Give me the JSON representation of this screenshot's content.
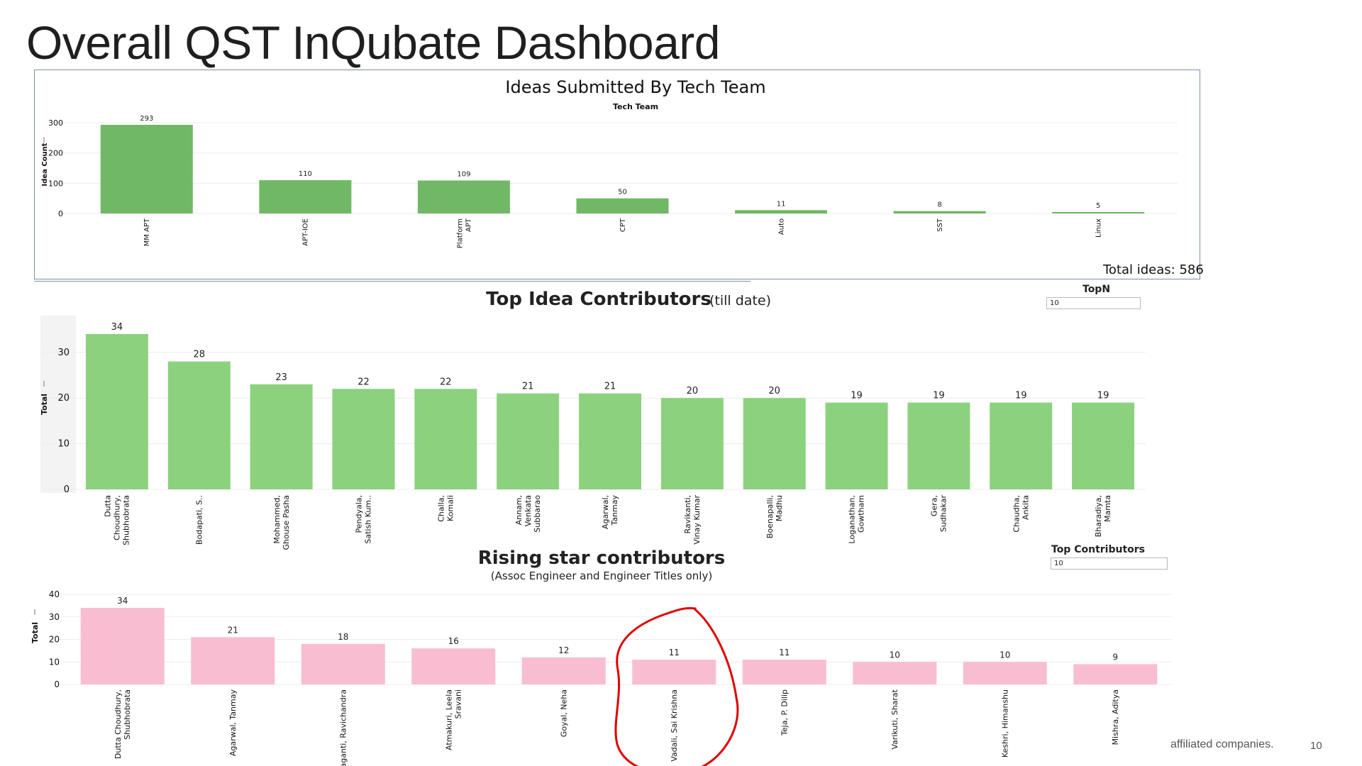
{
  "page": {
    "title": "Overall QST InQubate Dashboard",
    "footer_note": "affiliated companies.",
    "page_number": "10"
  },
  "chart_data": [
    {
      "type": "bar",
      "title": "Ideas Submitted By Tech Team",
      "subtitle": "Tech Team",
      "ylabel": "Idea Count",
      "ylim": [
        0,
        300
      ],
      "yticks": [
        0,
        100,
        200,
        300
      ],
      "categories": [
        "MM APT",
        "APT-IOE",
        "Platform APT",
        "CPT",
        "Auto",
        "SST",
        "Linux"
      ],
      "values": [
        293,
        110,
        109,
        50,
        11,
        8,
        5
      ],
      "color": "#70b865",
      "total_label": "Total ideas: 586"
    },
    {
      "type": "bar",
      "title": "Top Idea Contributors",
      "title_suffix": "(till date)",
      "ylabel": "Total",
      "ylim": [
        0,
        34
      ],
      "yticks": [
        0,
        10,
        20,
        30
      ],
      "categories": [
        "Dutta Choudhury, Shubhobrata",
        "Bodapati, S..",
        "Mohammed, Ghouse Pasha",
        "Pendyala, Satish Kum..",
        "Challa, Komali",
        "Annam, Venkata Subbarao",
        "Agarwal, Tanmay",
        "Ravikanti, Vinay Kumar",
        "Boenapalli, Madhu",
        "Loganathan, Gowtham",
        "Gera, Sudhakar",
        "Chaudha, Ankita",
        "Bharadiya, Mamta"
      ],
      "values": [
        34,
        28,
        23,
        22,
        22,
        21,
        21,
        20,
        20,
        19,
        19,
        19,
        19
      ],
      "color": "#8cd27e",
      "parameter": {
        "label": "TopN",
        "value": "10"
      }
    },
    {
      "type": "bar",
      "title": "Rising star contributors",
      "subtitle": "(Assoc Engineer and Engineer Titles only)",
      "ylabel": "Total",
      "ylim": [
        0,
        40
      ],
      "yticks": [
        0,
        10,
        20,
        30,
        40
      ],
      "categories": [
        "Dutta Choudhury, Shubhobrata",
        "Agarwal, Tanmay",
        "Ponaganti, Ravichandra",
        "Atmakuri, Leela Sravani",
        "Goyal, Neha",
        "Vadali, Sai Krishna",
        "Teja, P. Dilip",
        "Varikuti, Sharat",
        "Keshri, Himanshu",
        "Mishra, Aditya"
      ],
      "values": [
        34,
        21,
        18,
        16,
        12,
        11,
        11,
        10,
        10,
        9
      ],
      "color": "#f9bdd2",
      "highlighted": "Vadali, Sai Krishna",
      "highlight_color": "#e00000",
      "parameter": {
        "label": "Top Contributors",
        "value": "10"
      }
    }
  ]
}
